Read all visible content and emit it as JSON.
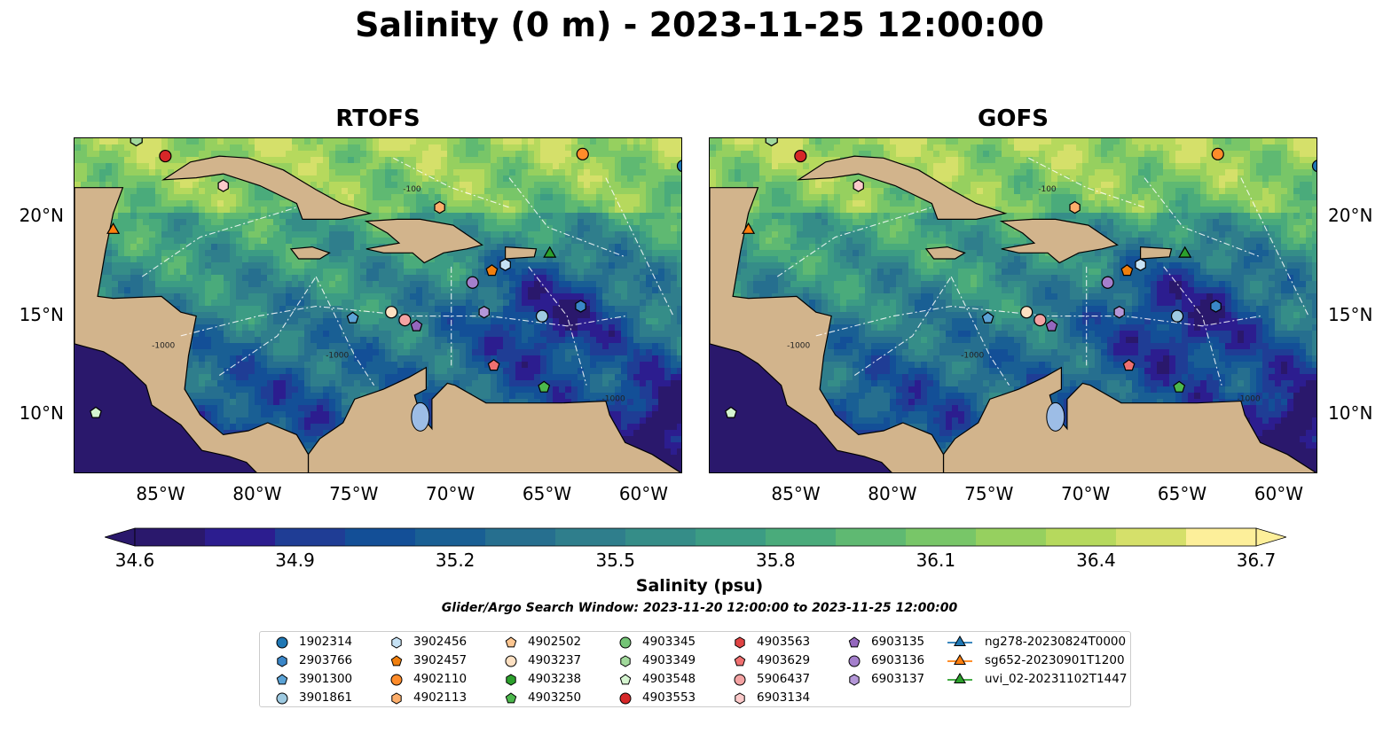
{
  "title": "Salinity (0 m) - 2023-11-25 12:00:00",
  "panels": [
    {
      "title": "RTOFS"
    },
    {
      "title": "GOFS"
    }
  ],
  "map": {
    "lon_range": [
      -89.5,
      -58.0
    ],
    "lat_range": [
      7.0,
      24.0
    ],
    "lon_ticks": [
      "85°W",
      "80°W",
      "75°W",
      "70°W",
      "65°W",
      "60°W"
    ],
    "lat_ticks": [
      "20°N",
      "15°N",
      "10°N"
    ],
    "land_color": "#d2b48c",
    "lake_color": "#9dbde6",
    "contour_label": "-1000",
    "contour_label_alt": "-100"
  },
  "colorbar": {
    "label": "Salinity (psu)",
    "ticks": [
      "34.6",
      "34.9",
      "35.2",
      "35.5",
      "35.8",
      "36.1",
      "36.4",
      "36.7"
    ],
    "min": 34.6,
    "max": 36.7,
    "colormap": "haline",
    "extend": "both"
  },
  "search_window": "Glider/Argo Search Window: 2023-11-20 12:00:00 to 2023-11-25 12:00:00",
  "legend": [
    {
      "label": "1902314",
      "marker": "circle",
      "color": "#1f77b4"
    },
    {
      "label": "2903766",
      "marker": "hexagon",
      "color": "#3a86c8"
    },
    {
      "label": "3901300",
      "marker": "pentagon",
      "color": "#5ba3d6"
    },
    {
      "label": "3901861",
      "marker": "circle",
      "color": "#9ecae1"
    },
    {
      "label": "3902456",
      "marker": "hexagon",
      "color": "#c6e2f5"
    },
    {
      "label": "3902457",
      "marker": "pentagon",
      "color": "#f07f0e"
    },
    {
      "label": "4902110",
      "marker": "circle",
      "color": "#ff8c2a"
    },
    {
      "label": "4902113",
      "marker": "hexagon",
      "color": "#fdae6b"
    },
    {
      "label": "4902502",
      "marker": "pentagon",
      "color": "#fdc690"
    },
    {
      "label": "4903237",
      "marker": "circle",
      "color": "#fde0c2"
    },
    {
      "label": "4903238",
      "marker": "hexagon",
      "color": "#2ca02c"
    },
    {
      "label": "4903250",
      "marker": "pentagon",
      "color": "#4cb84c"
    },
    {
      "label": "4903345",
      "marker": "circle",
      "color": "#74c476"
    },
    {
      "label": "4903349",
      "marker": "hexagon",
      "color": "#a1d99b"
    },
    {
      "label": "4903548",
      "marker": "pentagon",
      "color": "#d5f5d0"
    },
    {
      "label": "4903553",
      "marker": "circle",
      "color": "#d62728"
    },
    {
      "label": "4903563",
      "marker": "hexagon",
      "color": "#e04444"
    },
    {
      "label": "4903629",
      "marker": "pentagon",
      "color": "#f07070"
    },
    {
      "label": "5906437",
      "marker": "circle",
      "color": "#f4a3a3"
    },
    {
      "label": "6903134",
      "marker": "hexagon",
      "color": "#fccaca"
    },
    {
      "label": "6903135",
      "marker": "pentagon",
      "color": "#9467bd"
    },
    {
      "label": "6903136",
      "marker": "circle",
      "color": "#a47fcc"
    },
    {
      "label": "6903137",
      "marker": "hexagon",
      "color": "#b497d8"
    },
    {
      "label": "ng278-20230824T0000",
      "marker": "triangle-line",
      "color": "#1f77b4"
    },
    {
      "label": "sg652-20230901T1200",
      "marker": "triangle-line",
      "color": "#ff7f0e"
    },
    {
      "label": "uvi_02-20231102T1447",
      "marker": "triangle-line",
      "color": "#2ca02c"
    }
  ],
  "floats": [
    {
      "id": "1902314",
      "lon": -58.0,
      "lat": 22.6
    },
    {
      "id": "2903766",
      "lon": -63.3,
      "lat": 15.5
    },
    {
      "id": "3901300",
      "lon": -75.1,
      "lat": 14.9
    },
    {
      "id": "3901861",
      "lon": -65.3,
      "lat": 15.0
    },
    {
      "id": "3902456",
      "lon": -67.2,
      "lat": 17.6
    },
    {
      "id": "3902457",
      "lon": -67.9,
      "lat": 17.3
    },
    {
      "id": "4902110",
      "lon": -63.2,
      "lat": 23.2
    },
    {
      "id": "4902113",
      "lon": -70.6,
      "lat": 20.5
    },
    {
      "id": "4903237",
      "lon": -73.1,
      "lat": 15.2
    },
    {
      "id": "4903250",
      "lon": -65.2,
      "lat": 11.4
    },
    {
      "id": "4903553",
      "lon": -84.8,
      "lat": 23.1
    },
    {
      "id": "4903629",
      "lon": -67.8,
      "lat": 12.5
    },
    {
      "id": "5906437",
      "lon": -72.4,
      "lat": 14.8
    },
    {
      "id": "6903134",
      "lon": -81.8,
      "lat": 21.6
    },
    {
      "id": "6903135",
      "lon": -71.8,
      "lat": 14.5
    },
    {
      "id": "6903136",
      "lon": -68.9,
      "lat": 16.7
    },
    {
      "id": "6903137",
      "lon": -68.3,
      "lat": 15.2
    },
    {
      "id": "4903548",
      "lon": -88.4,
      "lat": 10.1
    }
  ],
  "gliders": [
    {
      "id": "sg652-20230901T1200",
      "lon": -87.5,
      "lat": 19.4
    },
    {
      "id": "uvi_02-20231102T1447",
      "lon": -64.9,
      "lat": 18.2
    },
    {
      "id": "4903349",
      "lon": -86.3,
      "lat": 24.0
    }
  ]
}
